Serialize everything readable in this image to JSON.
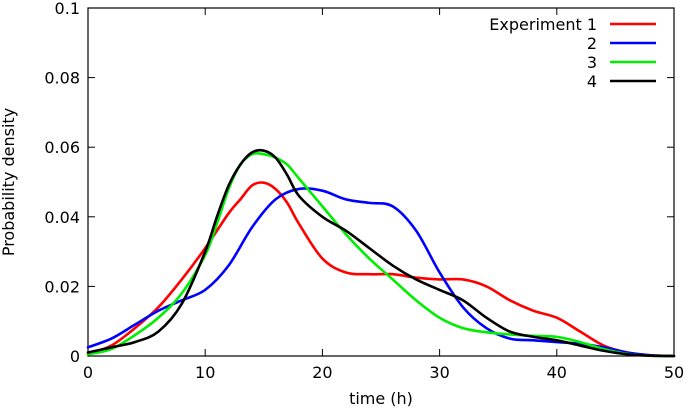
{
  "chart_data": {
    "type": "line",
    "title": "",
    "xlabel": "time (h)",
    "ylabel": "Probability density",
    "xlim": [
      0,
      50
    ],
    "ylim": [
      0,
      0.1
    ],
    "xticks": [
      0,
      10,
      20,
      30,
      40,
      50
    ],
    "yticks": [
      0,
      0.02,
      0.04,
      0.06,
      0.08,
      0.1
    ],
    "xtick_labels": [
      "0",
      "10",
      "20",
      "30",
      "40",
      "50"
    ],
    "ytick_labels": [
      "0",
      "0.02",
      "0.04",
      "0.06",
      "0.08",
      "0.1"
    ],
    "grid": false,
    "legend_position": "top-right",
    "series": [
      {
        "name": "Experiment 1",
        "color": "#ff0000",
        "x": [
          0,
          2,
          4,
          6,
          8,
          10,
          12,
          13,
          14,
          15,
          16,
          17,
          18,
          20,
          22,
          24,
          26,
          28,
          30,
          32,
          34,
          36,
          38,
          40,
          42,
          44,
          46,
          48,
          50
        ],
        "y": [
          0.0005,
          0.003,
          0.008,
          0.014,
          0.022,
          0.031,
          0.041,
          0.045,
          0.049,
          0.0498,
          0.048,
          0.044,
          0.038,
          0.028,
          0.024,
          0.0235,
          0.0235,
          0.0225,
          0.022,
          0.022,
          0.02,
          0.016,
          0.013,
          0.011,
          0.007,
          0.003,
          0.001,
          0.0002,
          0.0
        ]
      },
      {
        "name": "2",
        "color": "#0000ff",
        "x": [
          0,
          2,
          4,
          6,
          8,
          10,
          12,
          14,
          16,
          18,
          20,
          22,
          24,
          26,
          28,
          30,
          32,
          34,
          36,
          38,
          40,
          42,
          44,
          46,
          48,
          50
        ],
        "y": [
          0.0025,
          0.005,
          0.009,
          0.013,
          0.016,
          0.019,
          0.026,
          0.037,
          0.045,
          0.048,
          0.0475,
          0.045,
          0.044,
          0.043,
          0.036,
          0.024,
          0.014,
          0.008,
          0.005,
          0.0045,
          0.004,
          0.0035,
          0.0025,
          0.001,
          0.0002,
          0.0
        ]
      },
      {
        "name": "3",
        "color": "#00ee00",
        "x": [
          0,
          2,
          4,
          6,
          8,
          10,
          11,
          12,
          13,
          14,
          15,
          16,
          17,
          18,
          20,
          22,
          24,
          26,
          28,
          30,
          32,
          34,
          36,
          38,
          40,
          42,
          44,
          46,
          48,
          50
        ],
        "y": [
          0.0005,
          0.002,
          0.006,
          0.011,
          0.018,
          0.029,
          0.038,
          0.048,
          0.055,
          0.058,
          0.058,
          0.057,
          0.055,
          0.051,
          0.043,
          0.035,
          0.028,
          0.022,
          0.016,
          0.011,
          0.008,
          0.0068,
          0.0062,
          0.0058,
          0.0055,
          0.004,
          0.002,
          0.0006,
          0.0001,
          0.0
        ]
      },
      {
        "name": "4",
        "color": "#000000",
        "x": [
          0,
          2,
          4,
          6,
          8,
          10,
          11,
          12,
          13,
          14,
          15,
          16,
          17,
          18,
          20,
          22,
          24,
          26,
          28,
          30,
          32,
          34,
          36,
          38,
          40,
          42,
          44,
          46,
          48,
          50
        ],
        "y": [
          0.001,
          0.0025,
          0.004,
          0.007,
          0.015,
          0.03,
          0.04,
          0.049,
          0.055,
          0.0585,
          0.059,
          0.057,
          0.052,
          0.046,
          0.04,
          0.036,
          0.031,
          0.026,
          0.022,
          0.019,
          0.016,
          0.011,
          0.007,
          0.0055,
          0.0045,
          0.003,
          0.0015,
          0.0005,
          0.0001,
          0.0
        ]
      }
    ]
  }
}
